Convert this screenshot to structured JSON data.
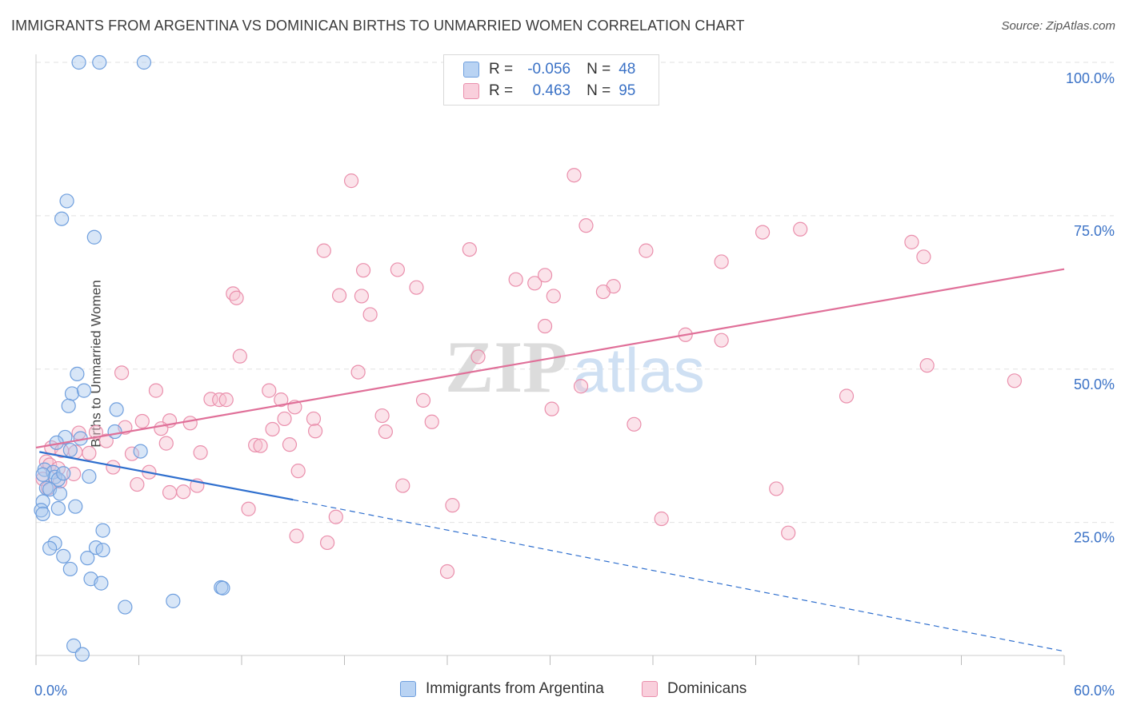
{
  "header": {
    "title": "IMMIGRANTS FROM ARGENTINA VS DOMINICAN BIRTHS TO UNMARRIED WOMEN CORRELATION CHART",
    "source": "Source: ZipAtlas.com"
  },
  "legend_top": {
    "rows": [
      {
        "r_label": "R =",
        "r_value": "-0.056",
        "n_label": "N =",
        "n_value": "48"
      },
      {
        "r_label": "R =",
        "r_value": "0.463",
        "n_label": "N =",
        "n_value": "95"
      }
    ]
  },
  "legend_bottom": {
    "items": [
      "Immigrants from Argentina",
      "Dominicans"
    ]
  },
  "colors": {
    "blue_fill": "#a9c8ee",
    "blue_stroke": "#6f9fde",
    "blue_line": "#2f6fce",
    "pink_fill": "#f6c0d0",
    "pink_stroke": "#ea8fac",
    "pink_line": "#e07099",
    "tick_label": "#3b72c6",
    "grid": "#e2e2e2"
  },
  "chart_data": {
    "type": "scatter",
    "ylabel": "Births to Unmarried Women",
    "xlim": [
      0,
      60
    ],
    "ylim": [
      0,
      100
    ],
    "x_tick_labels": [
      "0.0%",
      "60.0%"
    ],
    "y_ticks": [
      25,
      50,
      75,
      100
    ],
    "y_tick_labels": [
      "25.0%",
      "50.0%",
      "75.0%",
      "100.0%"
    ],
    "grid": true,
    "watermark": "ZIPatlas",
    "series": [
      {
        "name": "Immigrants from Argentina",
        "color": "blue",
        "points": [
          [
            2.5,
            100
          ],
          [
            3.7,
            100
          ],
          [
            6.3,
            100
          ],
          [
            1.8,
            77.4
          ],
          [
            1.5,
            74.5
          ],
          [
            3.4,
            71.5
          ],
          [
            2.4,
            49.2
          ],
          [
            2.1,
            46.0
          ],
          [
            2.8,
            46.5
          ],
          [
            1.9,
            44.0
          ],
          [
            4.7,
            43.4
          ],
          [
            4.6,
            39.8
          ],
          [
            1.7,
            38.9
          ],
          [
            2.6,
            38.7
          ],
          [
            1.2,
            38.0
          ],
          [
            6.1,
            36.6
          ],
          [
            2.0,
            36.8
          ],
          [
            0.5,
            33.6
          ],
          [
            1.0,
            33.2
          ],
          [
            1.1,
            32.4
          ],
          [
            1.3,
            32.0
          ],
          [
            3.1,
            32.5
          ],
          [
            0.6,
            30.6
          ],
          [
            0.8,
            30.4
          ],
          [
            1.4,
            29.7
          ],
          [
            0.4,
            28.4
          ],
          [
            2.3,
            27.6
          ],
          [
            1.3,
            27.3
          ],
          [
            0.3,
            27.0
          ],
          [
            0.4,
            26.4
          ],
          [
            3.9,
            23.7
          ],
          [
            1.1,
            21.6
          ],
          [
            0.8,
            20.8
          ],
          [
            3.5,
            20.9
          ],
          [
            3.9,
            20.5
          ],
          [
            1.6,
            19.5
          ],
          [
            3.0,
            19.2
          ],
          [
            2.0,
            17.4
          ],
          [
            3.2,
            15.8
          ],
          [
            3.8,
            15.1
          ],
          [
            10.8,
            14.4
          ],
          [
            10.9,
            14.3
          ],
          [
            8.0,
            12.2
          ],
          [
            5.2,
            11.2
          ],
          [
            2.2,
            4.9
          ],
          [
            2.7,
            3.5
          ],
          [
            0.4,
            32.8
          ],
          [
            1.6,
            33.0
          ]
        ],
        "trend": {
          "x0": 0.2,
          "y0": 36.5,
          "x1": 15.0,
          "y1": 28.7,
          "dash_x1": 60.0,
          "dash_y1": 4.0
        }
      },
      {
        "name": "Dominicans",
        "color": "pink",
        "points": [
          [
            18.4,
            80.7
          ],
          [
            31.4,
            81.6
          ],
          [
            32.1,
            73.4
          ],
          [
            42.4,
            72.3
          ],
          [
            44.6,
            72.8
          ],
          [
            51.1,
            70.7
          ],
          [
            51.8,
            68.3
          ],
          [
            16.8,
            69.3
          ],
          [
            25.3,
            69.5
          ],
          [
            35.6,
            69.3
          ],
          [
            40.0,
            67.5
          ],
          [
            19.1,
            66.1
          ],
          [
            21.1,
            66.2
          ],
          [
            28.0,
            64.6
          ],
          [
            29.1,
            64.0
          ],
          [
            29.7,
            65.3
          ],
          [
            22.2,
            63.3
          ],
          [
            33.7,
            63.5
          ],
          [
            11.5,
            62.3
          ],
          [
            11.7,
            61.6
          ],
          [
            17.7,
            62.0
          ],
          [
            19.0,
            61.9
          ],
          [
            30.2,
            61.9
          ],
          [
            33.1,
            62.6
          ],
          [
            19.5,
            58.9
          ],
          [
            29.7,
            57.0
          ],
          [
            37.9,
            55.6
          ],
          [
            40.0,
            54.7
          ],
          [
            11.9,
            52.1
          ],
          [
            25.8,
            52.0
          ],
          [
            18.8,
            49.5
          ],
          [
            5.0,
            49.4
          ],
          [
            52.0,
            50.6
          ],
          [
            57.1,
            48.1
          ],
          [
            7.0,
            46.5
          ],
          [
            13.6,
            46.5
          ],
          [
            31.8,
            47.2
          ],
          [
            47.3,
            45.6
          ],
          [
            10.2,
            45.1
          ],
          [
            10.7,
            45.0
          ],
          [
            11.1,
            45.0
          ],
          [
            14.3,
            45.0
          ],
          [
            22.6,
            44.9
          ],
          [
            15.1,
            43.8
          ],
          [
            30.1,
            43.5
          ],
          [
            20.2,
            42.4
          ],
          [
            16.2,
            41.9
          ],
          [
            14.5,
            41.9
          ],
          [
            6.2,
            41.5
          ],
          [
            7.8,
            41.6
          ],
          [
            9.0,
            41.2
          ],
          [
            23.1,
            41.4
          ],
          [
            34.9,
            41.0
          ],
          [
            5.2,
            40.5
          ],
          [
            7.3,
            40.3
          ],
          [
            13.8,
            40.2
          ],
          [
            16.3,
            39.9
          ],
          [
            20.4,
            39.8
          ],
          [
            2.5,
            39.6
          ],
          [
            3.5,
            39.7
          ],
          [
            4.1,
            38.3
          ],
          [
            7.6,
            37.9
          ],
          [
            12.8,
            37.6
          ],
          [
            13.1,
            37.5
          ],
          [
            14.8,
            37.7
          ],
          [
            0.9,
            37.2
          ],
          [
            1.5,
            36.7
          ],
          [
            2.3,
            36.5
          ],
          [
            3.1,
            36.3
          ],
          [
            5.6,
            36.2
          ],
          [
            9.6,
            36.4
          ],
          [
            0.6,
            34.9
          ],
          [
            0.8,
            34.4
          ],
          [
            1.3,
            33.8
          ],
          [
            4.5,
            34.0
          ],
          [
            6.6,
            33.2
          ],
          [
            15.3,
            33.4
          ],
          [
            2.2,
            32.9
          ],
          [
            0.4,
            32.1
          ],
          [
            1.4,
            31.7
          ],
          [
            5.9,
            31.2
          ],
          [
            9.4,
            31.0
          ],
          [
            21.4,
            31.0
          ],
          [
            0.7,
            30.6
          ],
          [
            7.8,
            29.9
          ],
          [
            8.6,
            30.0
          ],
          [
            43.2,
            30.5
          ],
          [
            12.4,
            27.2
          ],
          [
            24.3,
            27.8
          ],
          [
            17.5,
            25.9
          ],
          [
            36.5,
            25.6
          ],
          [
            15.2,
            22.8
          ],
          [
            17.0,
            21.7
          ],
          [
            43.9,
            23.3
          ],
          [
            24.0,
            17.0
          ]
        ],
        "trend": {
          "x0": 0.0,
          "y0": 37.2,
          "x1": 60.0,
          "y1": 66.3
        }
      }
    ]
  }
}
